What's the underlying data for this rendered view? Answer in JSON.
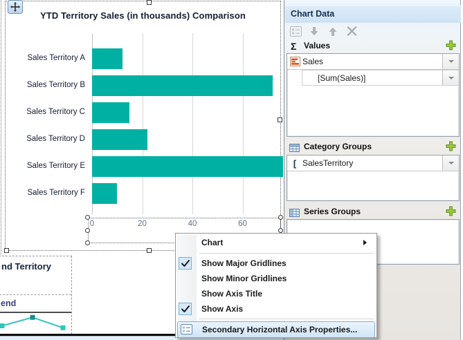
{
  "chart_data": [
    {
      "type": "bar",
      "orientation": "horizontal",
      "title": "YTD Territory Sales (in thousands) Comparison",
      "categories": [
        "Sales Territory A",
        "Sales Territory B",
        "Sales Territory C",
        "Sales Territory D",
        "Sales Territory E",
        "Sales Territory F"
      ],
      "values": [
        12,
        72,
        15,
        22,
        76,
        10
      ],
      "xlabel": "",
      "ylabel": "",
      "xlim": [
        0,
        80
      ],
      "x_ticks": [
        "0",
        "20",
        "40",
        "60"
      ],
      "gridlines": "major vertical only",
      "legend": "none",
      "bar_color": "#00b1a3"
    },
    {
      "type": "line",
      "note": "partially visible mini chart clipped at left edge of design surface",
      "title_fragment": "nd Territory",
      "legend_fragment": "end",
      "x": [
        0,
        1,
        2
      ],
      "values": [
        30,
        65,
        22
      ],
      "line_color": "#2ec6ba",
      "marker": "square"
    }
  ],
  "panel": {
    "title": "Chart Data",
    "toolbar_icons": [
      "properties-icon",
      "move-down-icon",
      "move-up-icon",
      "delete-icon"
    ],
    "sections": [
      {
        "label": "Values",
        "icon": "sigma-icon",
        "add_icon": "green-plus-icon",
        "rows": [
          {
            "label": "Sales",
            "icon": "measure-icon",
            "dropdown": true,
            "indent": false
          },
          {
            "label": "[Sum(Sales)]",
            "icon": "",
            "dropdown": true,
            "indent": true
          }
        ]
      },
      {
        "label": "Category Groups",
        "icon": "table-icon",
        "add_icon": "green-plus-icon",
        "rows": [
          {
            "label": "SalesTerritory",
            "icon": "bracket-icon",
            "dropdown": true,
            "indent": false
          }
        ]
      },
      {
        "label": "Series Groups",
        "icon": "table-icon",
        "add_icon": "green-plus-icon",
        "rows": []
      }
    ]
  },
  "context_menu": {
    "items": [
      {
        "label": "Chart",
        "submenu": true,
        "checked": false,
        "highlighted": false
      },
      {
        "separator": true
      },
      {
        "label": "Show Major Gridlines",
        "checked": true,
        "highlighted": false
      },
      {
        "label": "Show Minor Gridlines",
        "checked": false,
        "highlighted": false
      },
      {
        "label": "Show Axis Title",
        "checked": false,
        "highlighted": false
      },
      {
        "label": "Show Axis",
        "checked": true,
        "highlighted": false
      },
      {
        "separator": true
      },
      {
        "label": "Secondary Horizontal Axis Properties...",
        "checked": false,
        "highlighted": true,
        "icon": "axis-properties-icon"
      }
    ],
    "highlight_color": "#cfe5f7",
    "check_box_color": "#d6e9f8"
  },
  "colors": {
    "bar_teal": "#00b1a3",
    "mini_line_teal": "#2ec6ba",
    "panel_header_blue": "#cfe2f4",
    "green_plus": "#9acc3a",
    "measure_icon_orange": "#d94f20"
  }
}
